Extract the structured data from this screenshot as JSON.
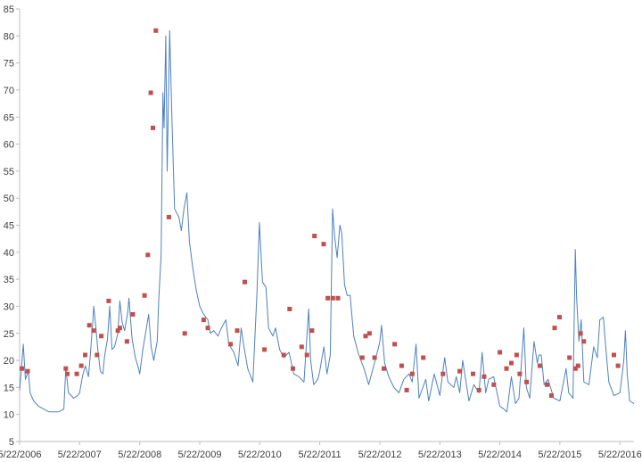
{
  "chart_data": {
    "type": "line",
    "title": "",
    "xlabel": "",
    "ylabel": "",
    "x_range": [
      "2006-05-22",
      "2016-08-15"
    ],
    "ylim": [
      5,
      85
    ],
    "y_ticks": [
      5,
      10,
      15,
      20,
      25,
      30,
      35,
      40,
      45,
      50,
      55,
      60,
      65,
      70,
      75,
      80,
      85
    ],
    "x_ticks": [
      {
        "date": "2006-05-22",
        "label": "5/22/2006"
      },
      {
        "date": "2007-05-22",
        "label": "5/22/2007"
      },
      {
        "date": "2008-05-22",
        "label": "5/22/2008"
      },
      {
        "date": "2009-05-22",
        "label": "5/22/2009"
      },
      {
        "date": "2010-05-22",
        "label": "5/22/2010"
      },
      {
        "date": "2011-05-22",
        "label": "5/22/2011"
      },
      {
        "date": "2012-05-22",
        "label": "5/22/2012"
      },
      {
        "date": "2013-05-22",
        "label": "5/22/2013"
      },
      {
        "date": "2014-05-22",
        "label": "5/22/2014"
      },
      {
        "date": "2015-05-22",
        "label": "5/22/2015"
      },
      {
        "date": "2016-05-22",
        "label": "5/22/2016"
      }
    ],
    "grid": false,
    "legend": "none",
    "colors": {
      "line": "#4f81bd",
      "marker": "#c0504d",
      "axis": "#bfbfbf",
      "text": "#404040"
    },
    "series": [
      {
        "style": "line",
        "points": [
          [
            "2006-05-22",
            14.5
          ],
          [
            "2006-06-01",
            18.0
          ],
          [
            "2006-06-13",
            23.0
          ],
          [
            "2006-06-26",
            16.5
          ],
          [
            "2006-07-14",
            18.0
          ],
          [
            "2006-07-25",
            14.0
          ],
          [
            "2006-08-15",
            12.5
          ],
          [
            "2006-09-15",
            11.5
          ],
          [
            "2006-10-15",
            11.0
          ],
          [
            "2006-11-15",
            10.5
          ],
          [
            "2006-12-15",
            10.5
          ],
          [
            "2007-01-15",
            10.5
          ],
          [
            "2007-02-15",
            11.0
          ],
          [
            "2007-02-27",
            18.5
          ],
          [
            "2007-03-05",
            17.0
          ],
          [
            "2007-03-15",
            14.0
          ],
          [
            "2007-04-01",
            13.5
          ],
          [
            "2007-04-15",
            13.0
          ],
          [
            "2007-05-10",
            13.5
          ],
          [
            "2007-05-22",
            14.0
          ],
          [
            "2007-06-08",
            17.0
          ],
          [
            "2007-06-26",
            19.0
          ],
          [
            "2007-07-15",
            17.0
          ],
          [
            "2007-07-26",
            21.0
          ],
          [
            "2007-08-10",
            27.0
          ],
          [
            "2007-08-16",
            30.0
          ],
          [
            "2007-08-28",
            26.5
          ],
          [
            "2007-09-10",
            22.0
          ],
          [
            "2007-09-25",
            18.0
          ],
          [
            "2007-10-10",
            17.5
          ],
          [
            "2007-10-22",
            21.0
          ],
          [
            "2007-11-08",
            24.0
          ],
          [
            "2007-11-21",
            30.0
          ],
          [
            "2007-12-05",
            22.0
          ],
          [
            "2007-12-20",
            22.5
          ],
          [
            "2008-01-10",
            25.0
          ],
          [
            "2008-01-22",
            31.0
          ],
          [
            "2008-02-05",
            27.0
          ],
          [
            "2008-02-20",
            25.5
          ],
          [
            "2008-03-10",
            29.0
          ],
          [
            "2008-03-17",
            31.5
          ],
          [
            "2008-04-05",
            24.0
          ],
          [
            "2008-04-25",
            20.5
          ],
          [
            "2008-05-15",
            18.5
          ],
          [
            "2008-05-22",
            17.5
          ],
          [
            "2008-06-10",
            22.0
          ],
          [
            "2008-06-26",
            25.0
          ],
          [
            "2008-07-15",
            28.5
          ],
          [
            "2008-07-30",
            22.5
          ],
          [
            "2008-08-15",
            20.0
          ],
          [
            "2008-09-05",
            23.5
          ],
          [
            "2008-09-15",
            31.5
          ],
          [
            "2008-09-29",
            39.5
          ],
          [
            "2008-10-10",
            69.5
          ],
          [
            "2008-10-17",
            63.0
          ],
          [
            "2008-10-27",
            80.0
          ],
          [
            "2008-11-05",
            55.0
          ],
          [
            "2008-11-20",
            81.0
          ],
          [
            "2008-12-05",
            63.0
          ],
          [
            "2008-12-20",
            48.0
          ],
          [
            "2009-01-15",
            46.5
          ],
          [
            "2009-01-30",
            44.0
          ],
          [
            "2009-02-15",
            48.0
          ],
          [
            "2009-03-05",
            51.0
          ],
          [
            "2009-03-20",
            42.0
          ],
          [
            "2009-04-10",
            37.0
          ],
          [
            "2009-05-01",
            33.0
          ],
          [
            "2009-05-22",
            30.0
          ],
          [
            "2009-06-15",
            28.5
          ],
          [
            "2009-07-10",
            27.5
          ],
          [
            "2009-07-25",
            25.0
          ],
          [
            "2009-08-15",
            25.5
          ],
          [
            "2009-09-10",
            24.5
          ],
          [
            "2009-10-01",
            26.0
          ],
          [
            "2009-10-28",
            27.5
          ],
          [
            "2009-11-15",
            23.0
          ],
          [
            "2009-12-15",
            21.5
          ],
          [
            "2010-01-10",
            19.0
          ],
          [
            "2010-01-29",
            26.0
          ],
          [
            "2010-02-15",
            22.5
          ],
          [
            "2010-03-10",
            18.5
          ],
          [
            "2010-04-10",
            16.0
          ],
          [
            "2010-05-06",
            33.0
          ],
          [
            "2010-05-20",
            45.5
          ],
          [
            "2010-06-08",
            34.5
          ],
          [
            "2010-06-29",
            33.5
          ],
          [
            "2010-07-15",
            26.0
          ],
          [
            "2010-08-10",
            24.5
          ],
          [
            "2010-08-26",
            26.0
          ],
          [
            "2010-09-20",
            22.0
          ],
          [
            "2010-10-15",
            20.5
          ],
          [
            "2010-11-16",
            21.5
          ],
          [
            "2010-12-15",
            17.5
          ],
          [
            "2011-01-15",
            17.0
          ],
          [
            "2011-02-15",
            16.0
          ],
          [
            "2011-03-16",
            29.5
          ],
          [
            "2011-03-28",
            20.0
          ],
          [
            "2011-04-15",
            15.5
          ],
          [
            "2011-05-10",
            16.5
          ],
          [
            "2011-05-22",
            18.0
          ],
          [
            "2011-06-16",
            22.5
          ],
          [
            "2011-07-05",
            17.5
          ],
          [
            "2011-07-25",
            21.0
          ],
          [
            "2011-08-08",
            48.0
          ],
          [
            "2011-08-20",
            43.0
          ],
          [
            "2011-09-05",
            39.0
          ],
          [
            "2011-09-22",
            45.0
          ],
          [
            "2011-10-03",
            43.5
          ],
          [
            "2011-10-20",
            34.0
          ],
          [
            "2011-11-05",
            32.0
          ],
          [
            "2011-11-23",
            32.0
          ],
          [
            "2011-12-15",
            24.5
          ],
          [
            "2012-01-15",
            21.0
          ],
          [
            "2012-02-15",
            18.5
          ],
          [
            "2012-03-15",
            15.5
          ],
          [
            "2012-04-10",
            18.5
          ],
          [
            "2012-05-15",
            22.5
          ],
          [
            "2012-05-22",
            23.5
          ],
          [
            "2012-06-01",
            26.5
          ],
          [
            "2012-06-20",
            19.5
          ],
          [
            "2012-07-15",
            17.0
          ],
          [
            "2012-08-15",
            15.0
          ],
          [
            "2012-09-15",
            14.0
          ],
          [
            "2012-10-15",
            16.5
          ],
          [
            "2012-11-15",
            17.5
          ],
          [
            "2012-12-05",
            16.0
          ],
          [
            "2012-12-28",
            23.0
          ],
          [
            "2013-01-15",
            13.0
          ],
          [
            "2013-02-25",
            16.5
          ],
          [
            "2013-03-15",
            12.5
          ],
          [
            "2013-04-18",
            17.5
          ],
          [
            "2013-05-22",
            13.5
          ],
          [
            "2013-06-20",
            20.5
          ],
          [
            "2013-07-10",
            16.0
          ],
          [
            "2013-08-15",
            15.0
          ],
          [
            "2013-08-30",
            17.0
          ],
          [
            "2013-09-20",
            14.0
          ],
          [
            "2013-10-08",
            20.0
          ],
          [
            "2013-11-15",
            12.5
          ],
          [
            "2013-12-15",
            15.5
          ],
          [
            "2014-01-15",
            14.0
          ],
          [
            "2014-02-03",
            21.5
          ],
          [
            "2014-02-25",
            14.0
          ],
          [
            "2014-03-15",
            16.5
          ],
          [
            "2014-04-14",
            17.0
          ],
          [
            "2014-05-22",
            11.5
          ],
          [
            "2014-06-15",
            11.0
          ],
          [
            "2014-07-04",
            10.5
          ],
          [
            "2014-07-31",
            17.0
          ],
          [
            "2014-08-25",
            12.0
          ],
          [
            "2014-09-15",
            13.0
          ],
          [
            "2014-10-15",
            26.0
          ],
          [
            "2014-10-30",
            15.0
          ],
          [
            "2014-11-20",
            13.0
          ],
          [
            "2014-12-16",
            23.5
          ],
          [
            "2015-01-05",
            19.5
          ],
          [
            "2015-01-15",
            21.0
          ],
          [
            "2015-01-29",
            21.0
          ],
          [
            "2015-02-15",
            15.5
          ],
          [
            "2015-03-11",
            16.5
          ],
          [
            "2015-04-15",
            13.0
          ],
          [
            "2015-05-22",
            12.5
          ],
          [
            "2015-06-29",
            18.5
          ],
          [
            "2015-07-15",
            14.0
          ],
          [
            "2015-08-10",
            13.0
          ],
          [
            "2015-08-24",
            40.5
          ],
          [
            "2015-09-01",
            31.5
          ],
          [
            "2015-09-15",
            23.5
          ],
          [
            "2015-09-29",
            27.5
          ],
          [
            "2015-10-15",
            16.0
          ],
          [
            "2015-11-15",
            15.5
          ],
          [
            "2015-12-14",
            22.5
          ],
          [
            "2016-01-05",
            20.5
          ],
          [
            "2016-01-20",
            27.5
          ],
          [
            "2016-02-11",
            28.0
          ],
          [
            "2016-02-25",
            22.5
          ],
          [
            "2016-03-15",
            16.0
          ],
          [
            "2016-04-15",
            13.5
          ],
          [
            "2016-05-22",
            14.0
          ],
          [
            "2016-06-14",
            20.0
          ],
          [
            "2016-06-24",
            25.5
          ],
          [
            "2016-07-05",
            17.5
          ],
          [
            "2016-07-20",
            12.5
          ],
          [
            "2016-08-15",
            12.0
          ]
        ]
      },
      {
        "style": "markers",
        "points": [
          [
            "2006-06-05",
            18.5
          ],
          [
            "2006-07-10",
            18.0
          ],
          [
            "2007-02-27",
            18.5
          ],
          [
            "2007-03-08",
            17.5
          ],
          [
            "2007-05-05",
            17.5
          ],
          [
            "2007-06-01",
            19.0
          ],
          [
            "2007-06-25",
            21.0
          ],
          [
            "2007-07-20",
            26.5
          ],
          [
            "2007-08-15",
            25.5
          ],
          [
            "2007-09-05",
            21.0
          ],
          [
            "2007-10-01",
            24.5
          ],
          [
            "2007-11-15",
            31.0
          ],
          [
            "2008-01-10",
            25.5
          ],
          [
            "2008-01-22",
            26.0
          ],
          [
            "2008-03-05",
            23.5
          ],
          [
            "2008-04-10",
            28.5
          ],
          [
            "2008-06-20",
            32.0
          ],
          [
            "2008-07-10",
            39.5
          ],
          [
            "2008-07-28",
            69.5
          ],
          [
            "2008-08-10",
            63.0
          ],
          [
            "2008-08-28",
            81.0
          ],
          [
            "2008-11-15",
            46.5
          ],
          [
            "2009-02-20",
            25.0
          ],
          [
            "2009-06-15",
            27.5
          ],
          [
            "2009-07-10",
            26.0
          ],
          [
            "2009-11-25",
            23.0
          ],
          [
            "2010-01-05",
            25.5
          ],
          [
            "2010-02-20",
            34.5
          ],
          [
            "2010-06-20",
            22.0
          ],
          [
            "2010-10-15",
            21.0
          ],
          [
            "2010-11-20",
            29.5
          ],
          [
            "2010-12-10",
            18.5
          ],
          [
            "2011-02-01",
            22.5
          ],
          [
            "2011-03-05",
            21.0
          ],
          [
            "2011-04-05",
            25.5
          ],
          [
            "2011-04-20",
            43.0
          ],
          [
            "2011-06-15",
            41.5
          ],
          [
            "2011-07-10",
            31.5
          ],
          [
            "2011-08-10",
            31.5
          ],
          [
            "2011-09-10",
            31.5
          ],
          [
            "2012-02-05",
            20.5
          ],
          [
            "2012-02-25",
            24.5
          ],
          [
            "2012-03-20",
            25.0
          ],
          [
            "2012-04-20",
            20.5
          ],
          [
            "2012-06-15",
            18.5
          ],
          [
            "2012-08-20",
            23.0
          ],
          [
            "2012-10-01",
            19.0
          ],
          [
            "2012-11-01",
            14.5
          ],
          [
            "2012-12-05",
            17.5
          ],
          [
            "2013-02-10",
            20.5
          ],
          [
            "2013-06-10",
            17.5
          ],
          [
            "2013-09-20",
            18.0
          ],
          [
            "2013-12-10",
            17.5
          ],
          [
            "2014-01-15",
            14.5
          ],
          [
            "2014-02-15",
            17.0
          ],
          [
            "2014-04-15",
            15.5
          ],
          [
            "2014-05-22",
            21.5
          ],
          [
            "2014-07-01",
            18.5
          ],
          [
            "2014-07-31",
            19.5
          ],
          [
            "2014-09-01",
            21.0
          ],
          [
            "2014-09-20",
            17.5
          ],
          [
            "2014-11-01",
            16.0
          ],
          [
            "2015-01-20",
            19.0
          ],
          [
            "2015-03-05",
            15.5
          ],
          [
            "2015-04-01",
            13.5
          ],
          [
            "2015-04-20",
            26.0
          ],
          [
            "2015-05-20",
            28.0
          ],
          [
            "2015-07-20",
            20.5
          ],
          [
            "2015-08-25",
            18.5
          ],
          [
            "2015-09-10",
            19.0
          ],
          [
            "2015-09-25",
            25.0
          ],
          [
            "2015-10-15",
            23.5
          ],
          [
            "2016-04-15",
            21.0
          ],
          [
            "2016-05-10",
            19.0
          ]
        ]
      }
    ]
  }
}
